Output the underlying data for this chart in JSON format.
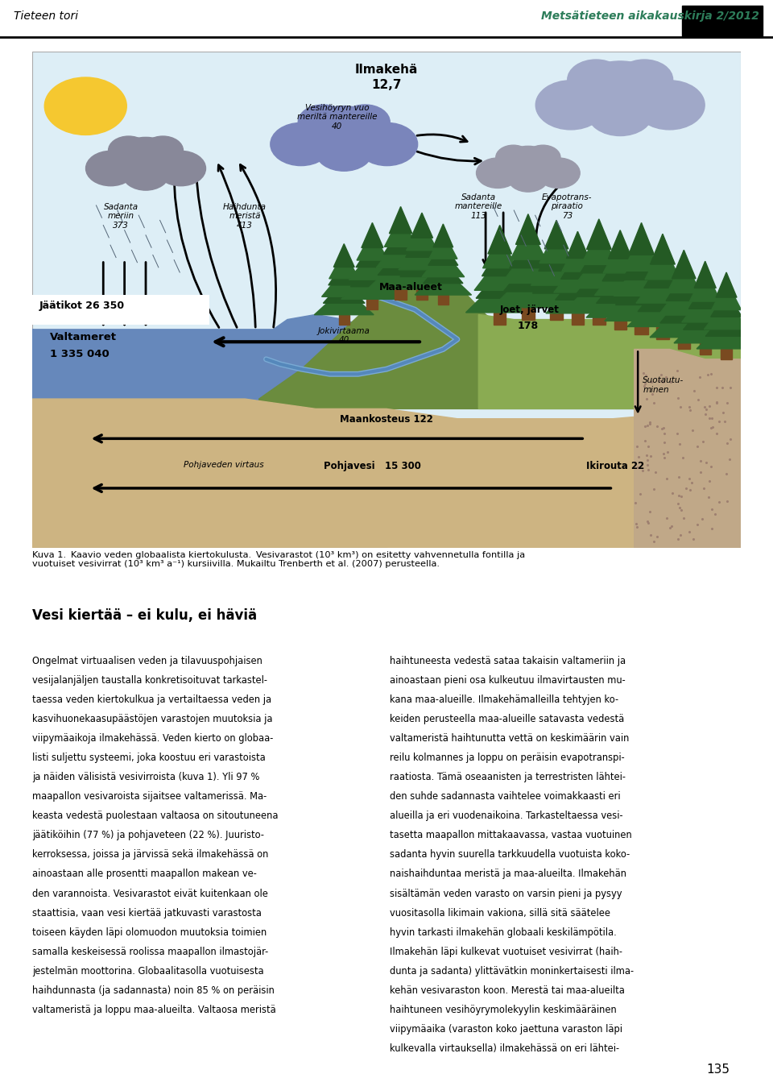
{
  "title_left": "Tieteen tori",
  "title_right": "Metsätieteen aikakauskirja 2/2012",
  "page_number": "135",
  "fig_bg": "#ffffff",
  "sky_color": "#ddeef6",
  "ground_dark": "#6b8c3e",
  "ground_light": "#8aab52",
  "water_color": "#6688bb",
  "sand_color": "#cdb482",
  "rock_color": "#c0a888",
  "ilmakehä_label": "Ilmakehä",
  "ilmakehä_value": "12,7",
  "caption_line1": "Kuva 1. Kaavio veden globaalista kiertokulusta. Vesivarastot (10³ km³) on esitetty vahvennetulla fontilla ja",
  "caption_line2": "vuotuiset vesivirrat (10³ km³ a⁻¹) kursiivilla. Mukailtu Trenberth et al. (2007) perusteella.",
  "body_title": "Vesi kiertää – ei kulu, ei häviä",
  "col1_lines": [
    "Ongelmat virtuaalisen veden ja tilavuuspohjaisen",
    "vesijalanjäljen taustalla konkretisoituvat tarkastel-",
    "taessa veden kiertokulkua ja vertailtaessa veden ja",
    "kasvihuonekaasupäästöjen varastojen muutoksia ja",
    "viipymäaikoja ilmakehässä. Veden kierto on globaa-",
    "listi suljettu systeemi, joka koostuu eri varastoista",
    "ja näiden välisistä vesivirroista (kuva 1). Yli 97 %",
    "maapallon vesivaroista sijaitsee valtamerissä. Ma-",
    "keasta vedestä puolestaan valtaosa on sitoutuneena",
    "jäätiköihin (77 %) ja pohjaveteen (22 %). Juuristo-",
    "kerroksessa, joissa ja järvissä sekä ilmakehässä on",
    "ainoastaan alle prosentti maapallon makean ve-",
    "den varannoista. Vesivarastot eivät kuitenkaan ole",
    "staattisia, vaan vesi kiertää jatkuvasti varastosta",
    "toiseen käyden läpi olomuodon muutoksia toimien",
    "samalla keskeisessä roolissa maapallon ilmastojär-",
    "jestelmän moottorina. Globaalitasolla vuotuisesta",
    "haihdunnasta (ja sadannasta) noin 85 % on peräisin",
    "valtameristä ja loppu maa-alueilta. Valtaosa meristä"
  ],
  "col2_lines": [
    "haihtuneesta vedestä sataa takaisin valtameriin ja",
    "ainoastaan pieni osa kulkeutuu ilmavirtausten mu-",
    "kana maa-alueille. Ilmakehämalleilla tehtyjen ko-",
    "keiden perusteella maa-alueille satavasta vedestä",
    "valtameristä haihtunutta vettä on keskimäärin vain",
    "reilu kolmannes ja loppu on peräisin evapotranspi-",
    "raatiosta. Tämä oseaanisten ja terrestristen lähtei-",
    "den suhde sadannasta vaihtelee voimakkaasti eri",
    "alueilla ja eri vuodenaikoina. Tarkasteltaessa vesi-",
    "tasetta maapallon mittakaavassa, vastaa vuotuinen",
    "sadanta hyvin suurella tarkkuudella vuotuista koko-",
    "naishaihduntaa meristä ja maa-alueilta. Ilmakehän",
    "sisältämän veden varasto on varsin pieni ja pysyy",
    "vuositasolla likimain vakiona, sillä sitä säätelee",
    "hyvin tarkasti ilmakehän globaali keskilämpötila.",
    "Ilmakehän läpi kulkevat vuotuiset vesivirrat (haih-",
    "dunta ja sadanta) ylittävätkin moninkertaisesti ilma-",
    "kehän vesivaraston koon. Merestä tai maa-alueilta",
    "haihtuneen vesihöyrymolekyylin keskimääräinen",
    "viipymäaika (varaston koko jaettuna varaston läpi",
    "kulkevalla virtauksella) ilmakehässä on eri lähtei-"
  ]
}
